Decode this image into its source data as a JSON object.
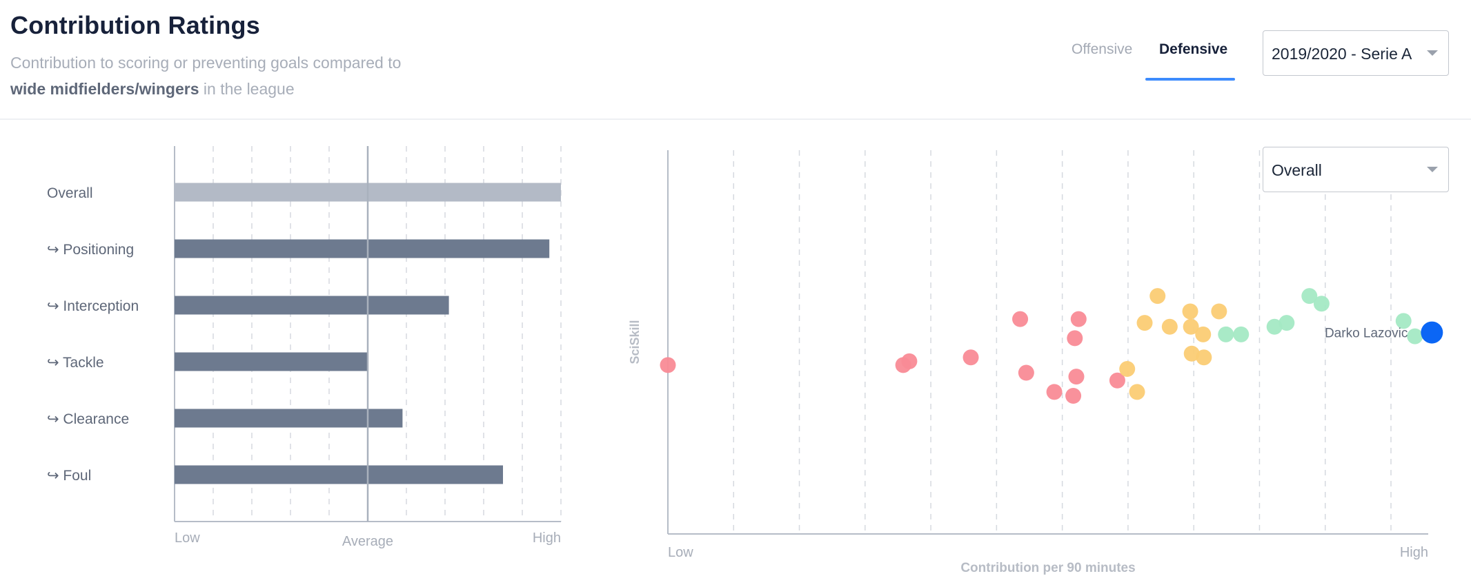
{
  "header": {
    "title": "Contribution Ratings",
    "subtitle_prefix": "Contribution to scoring or preventing goals compared to",
    "subtitle_bold": "wide midfielders/wingers",
    "subtitle_suffix": " in the league",
    "tabs": [
      {
        "label": "Offensive",
        "active": false
      },
      {
        "label": "Defensive",
        "active": true
      }
    ],
    "season_select": "2019/2020 - Serie A",
    "accent_color": "#3d8bfd"
  },
  "bar_chart": {
    "row_prefix_icon": "return-arrow-icon",
    "axis_labels": {
      "low": "Low",
      "average": "Average",
      "high": "High"
    },
    "overall_color": "#b3bac6",
    "sub_color": "#6d7a8f",
    "chart_data": {
      "type": "bar",
      "orientation": "horizontal",
      "categories": [
        "Overall",
        "Positioning",
        "Interception",
        "Tackle",
        "Clearance",
        "Foul"
      ],
      "values": [
        1.0,
        0.97,
        0.71,
        0.5,
        0.59,
        0.85
      ],
      "value_scale": "0 = Low, 0.5 = Average, 1 = High",
      "xlim": [
        0,
        1
      ],
      "grid": true
    }
  },
  "scatter_chart": {
    "metric_select": "Overall",
    "ylabel": "SciSkill",
    "xlabel": "Contribution per 90 minutes",
    "x_low": "Low",
    "x_high": "High",
    "highlight_label": "Darko Lazovic",
    "highlight_color": "#0b66f5",
    "tier_colors": {
      "low": "#f98b96",
      "mid": "#fbcc74",
      "high": "#a4e9c4"
    },
    "chart_data": {
      "type": "scatter",
      "xlim": [
        0,
        1
      ],
      "ylim": [
        0,
        1
      ],
      "grid": true,
      "points": [
        {
          "x": 0.0,
          "y": 0.44,
          "tier": "low"
        },
        {
          "x": 0.31,
          "y": 0.44,
          "tier": "low"
        },
        {
          "x": 0.318,
          "y": 0.45,
          "tier": "low"
        },
        {
          "x": 0.399,
          "y": 0.46,
          "tier": "low"
        },
        {
          "x": 0.464,
          "y": 0.56,
          "tier": "low"
        },
        {
          "x": 0.472,
          "y": 0.42,
          "tier": "low"
        },
        {
          "x": 0.509,
          "y": 0.37,
          "tier": "low"
        },
        {
          "x": 0.534,
          "y": 0.36,
          "tier": "low"
        },
        {
          "x": 0.536,
          "y": 0.51,
          "tier": "low"
        },
        {
          "x": 0.541,
          "y": 0.56,
          "tier": "low"
        },
        {
          "x": 0.538,
          "y": 0.41,
          "tier": "low"
        },
        {
          "x": 0.592,
          "y": 0.4,
          "tier": "low"
        },
        {
          "x": 0.605,
          "y": 0.43,
          "tier": "mid"
        },
        {
          "x": 0.618,
          "y": 0.37,
          "tier": "mid"
        },
        {
          "x": 0.628,
          "y": 0.55,
          "tier": "mid"
        },
        {
          "x": 0.645,
          "y": 0.62,
          "tier": "mid"
        },
        {
          "x": 0.661,
          "y": 0.54,
          "tier": "mid"
        },
        {
          "x": 0.688,
          "y": 0.58,
          "tier": "mid"
        },
        {
          "x": 0.689,
          "y": 0.54,
          "tier": "mid"
        },
        {
          "x": 0.69,
          "y": 0.47,
          "tier": "mid"
        },
        {
          "x": 0.705,
          "y": 0.52,
          "tier": "mid"
        },
        {
          "x": 0.706,
          "y": 0.46,
          "tier": "mid"
        },
        {
          "x": 0.726,
          "y": 0.58,
          "tier": "mid"
        },
        {
          "x": 0.735,
          "y": 0.52,
          "tier": "high"
        },
        {
          "x": 0.755,
          "y": 0.52,
          "tier": "high"
        },
        {
          "x": 0.799,
          "y": 0.54,
          "tier": "high"
        },
        {
          "x": 0.815,
          "y": 0.55,
          "tier": "high"
        },
        {
          "x": 0.845,
          "y": 0.62,
          "tier": "high"
        },
        {
          "x": 0.861,
          "y": 0.6,
          "tier": "high"
        },
        {
          "x": 0.969,
          "y": 0.555,
          "tier": "high"
        },
        {
          "x": 0.984,
          "y": 0.515,
          "tier": "high"
        },
        {
          "x": 1.0,
          "y": 0.525,
          "tier": "highlight"
        }
      ]
    }
  }
}
